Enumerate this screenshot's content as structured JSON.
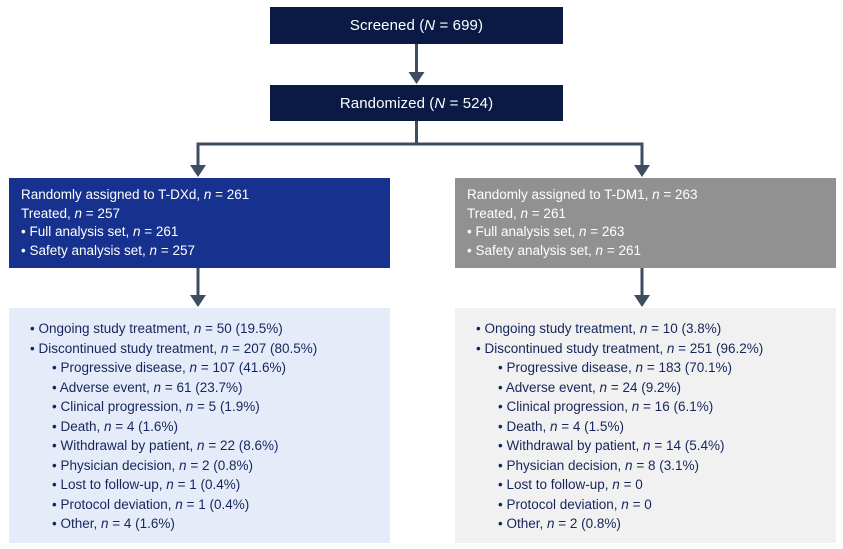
{
  "colors": {
    "navy": "#0a1a45",
    "blue": "#17318f",
    "gray": "#919191",
    "light_blue": "#e5ebf8",
    "light_gray": "#f1f1f1",
    "arrow": "#3f4d63",
    "text_dark": "#16265c",
    "text_light": "#ffffff"
  },
  "flow": {
    "screened_label": "Screened (N = 699)",
    "randomized_label": "Randomized (N = 524)",
    "arms": [
      {
        "name": "T-DXd",
        "assignment_lines": [
          {
            "level": 1,
            "text": "Randomly assigned to T-DXd, n = 261"
          },
          {
            "level": 1,
            "text": "Treated, n = 257"
          },
          {
            "level": 1,
            "text": "• Full analysis set, n = 261"
          },
          {
            "level": 1,
            "text": "• Safety analysis set, n = 257"
          }
        ],
        "outcome_lines": [
          {
            "level": 1,
            "text": "• Ongoing study treatment, n = 50 (19.5%)"
          },
          {
            "level": 1,
            "text": "• Discontinued study treatment, n = 207 (80.5%)"
          },
          {
            "level": 2,
            "text": "• Progressive disease, n = 107 (41.6%)"
          },
          {
            "level": 2,
            "text": "• Adverse event, n = 61 (23.7%)"
          },
          {
            "level": 2,
            "text": "• Clinical progression, n = 5 (1.9%)"
          },
          {
            "level": 2,
            "text": "• Death, n = 4 (1.6%)"
          },
          {
            "level": 2,
            "text": "• Withdrawal by patient, n = 22 (8.6%)"
          },
          {
            "level": 2,
            "text": "• Physician decision, n = 2 (0.8%)"
          },
          {
            "level": 2,
            "text": "• Lost to follow-up, n = 1 (0.4%)"
          },
          {
            "level": 2,
            "text": "• Protocol deviation, n = 1 (0.4%)"
          },
          {
            "level": 2,
            "text": "• Other, n = 4 (1.6%)"
          }
        ]
      },
      {
        "name": "T-DM1",
        "assignment_lines": [
          {
            "level": 1,
            "text": "Randomly assigned to T-DM1, n = 263"
          },
          {
            "level": 1,
            "text": "Treated, n = 261"
          },
          {
            "level": 1,
            "text": "• Full analysis set, n = 263"
          },
          {
            "level": 1,
            "text": "• Safety analysis set, n = 261"
          }
        ],
        "outcome_lines": [
          {
            "level": 1,
            "text": "• Ongoing study treatment, n = 10 (3.8%)"
          },
          {
            "level": 1,
            "text": "• Discontinued study treatment, n = 251 (96.2%)"
          },
          {
            "level": 2,
            "text": "• Progressive disease, n = 183 (70.1%)"
          },
          {
            "level": 2,
            "text": "• Adverse event, n = 24 (9.2%)"
          },
          {
            "level": 2,
            "text": "• Clinical progression, n = 16 (6.1%)"
          },
          {
            "level": 2,
            "text": "• Death, n = 4 (1.5%)"
          },
          {
            "level": 2,
            "text": "• Withdrawal by patient, n = 14 (5.4%)"
          },
          {
            "level": 2,
            "text": "• Physician decision, n = 8 (3.1%)"
          },
          {
            "level": 2,
            "text": "• Lost to follow-up, n = 0"
          },
          {
            "level": 2,
            "text": "• Protocol deviation, n = 0"
          },
          {
            "level": 2,
            "text": "• Other, n = 2 (0.8%)"
          }
        ]
      }
    ]
  }
}
